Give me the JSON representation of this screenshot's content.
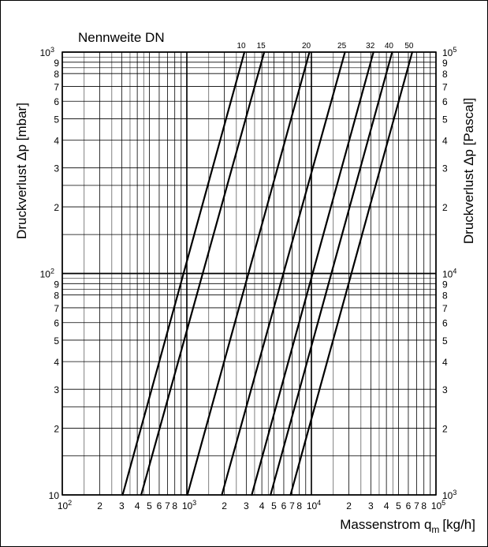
{
  "chart_data": {
    "type": "line",
    "title": "Nennweite DN",
    "xlabel_main": "Massenstrom q",
    "xlabel_sub": "m",
    "xlabel_unit": "[kg/h]",
    "ylabel_left": "Druckverlust Δp [mbar]",
    "ylabel_right": "Druckverlust Δp [Pascal]",
    "x_scale": "log",
    "y_scale": "log",
    "xlim": [
      100,
      100000
    ],
    "ylim": [
      10,
      1000
    ],
    "grid": true,
    "x_ticks": [
      {
        "v": 100,
        "base": "10",
        "exp": "2"
      },
      {
        "v": 200,
        "t": "2"
      },
      {
        "v": 300,
        "t": "3"
      },
      {
        "v": 400,
        "t": "4"
      },
      {
        "v": 500,
        "t": "5"
      },
      {
        "v": 600,
        "t": "6"
      },
      {
        "v": 700,
        "t": "7"
      },
      {
        "v": 800,
        "t": "8"
      },
      {
        "v": 1000,
        "base": "10",
        "exp": "3"
      },
      {
        "v": 2000,
        "t": "2"
      },
      {
        "v": 3000,
        "t": "3"
      },
      {
        "v": 4000,
        "t": "4"
      },
      {
        "v": 5000,
        "t": "5"
      },
      {
        "v": 6000,
        "t": "6"
      },
      {
        "v": 7000,
        "t": "7"
      },
      {
        "v": 8000,
        "t": "8"
      },
      {
        "v": 10000,
        "base": "10",
        "exp": "4"
      },
      {
        "v": 20000,
        "t": "2"
      },
      {
        "v": 30000,
        "t": "3"
      },
      {
        "v": 40000,
        "t": "4"
      },
      {
        "v": 50000,
        "t": "5"
      },
      {
        "v": 60000,
        "t": "6"
      },
      {
        "v": 70000,
        "t": "7"
      },
      {
        "v": 80000,
        "t": "8"
      },
      {
        "v": 100000,
        "base": "10",
        "exp": "5"
      }
    ],
    "y_ticks_left": [
      {
        "v": 10,
        "t": "10"
      },
      {
        "v": 20,
        "t": "2"
      },
      {
        "v": 30,
        "t": "3"
      },
      {
        "v": 40,
        "t": "4"
      },
      {
        "v": 50,
        "t": "5"
      },
      {
        "v": 60,
        "t": "6"
      },
      {
        "v": 70,
        "t": "7"
      },
      {
        "v": 80,
        "t": "8"
      },
      {
        "v": 90,
        "t": "9"
      },
      {
        "v": 100,
        "base": "10",
        "exp": "2"
      },
      {
        "v": 200,
        "t": "2"
      },
      {
        "v": 300,
        "t": "3"
      },
      {
        "v": 400,
        "t": "4"
      },
      {
        "v": 500,
        "t": "5"
      },
      {
        "v": 600,
        "t": "6"
      },
      {
        "v": 700,
        "t": "7"
      },
      {
        "v": 800,
        "t": "8"
      },
      {
        "v": 900,
        "t": "9"
      },
      {
        "v": 1000,
        "base": "10",
        "exp": "3"
      }
    ],
    "y_ticks_right": [
      {
        "v": 10,
        "base": "10",
        "exp": "3"
      },
      {
        "v": 20,
        "t": "2"
      },
      {
        "v": 30,
        "t": "3"
      },
      {
        "v": 40,
        "t": "4"
      },
      {
        "v": 50,
        "t": "5"
      },
      {
        "v": 60,
        "t": "6"
      },
      {
        "v": 70,
        "t": "7"
      },
      {
        "v": 80,
        "t": "8"
      },
      {
        "v": 90,
        "t": "9"
      },
      {
        "v": 100,
        "base": "10",
        "exp": "4"
      },
      {
        "v": 200,
        "t": "2"
      },
      {
        "v": 300,
        "t": "3"
      },
      {
        "v": 400,
        "t": "4"
      },
      {
        "v": 500,
        "t": "5"
      },
      {
        "v": 600,
        "t": "6"
      },
      {
        "v": 700,
        "t": "7"
      },
      {
        "v": 800,
        "t": "8"
      },
      {
        "v": 900,
        "t": "9"
      },
      {
        "v": 1000,
        "base": "10",
        "exp": "5"
      }
    ],
    "series": [
      {
        "name": "10",
        "points": [
          [
            305,
            10
          ],
          [
            2900,
            1000
          ]
        ]
      },
      {
        "name": "15",
        "points": [
          [
            430,
            10
          ],
          [
            4180,
            1000
          ]
        ]
      },
      {
        "name": "20",
        "points": [
          [
            1010,
            10
          ],
          [
            9650,
            1000
          ]
        ]
      },
      {
        "name": "25",
        "points": [
          [
            1910,
            10
          ],
          [
            18600,
            1000
          ]
        ]
      },
      {
        "name": "32",
        "points": [
          [
            3320,
            10
          ],
          [
            31500,
            1000
          ]
        ]
      },
      {
        "name": "40",
        "points": [
          [
            4700,
            10
          ],
          [
            44500,
            1000
          ]
        ]
      },
      {
        "name": "50",
        "points": [
          [
            6800,
            10
          ],
          [
            64500,
            1000
          ]
        ]
      }
    ],
    "colors": {
      "line": "#000000",
      "grid": "#000000",
      "background": "#ffffff"
    }
  }
}
